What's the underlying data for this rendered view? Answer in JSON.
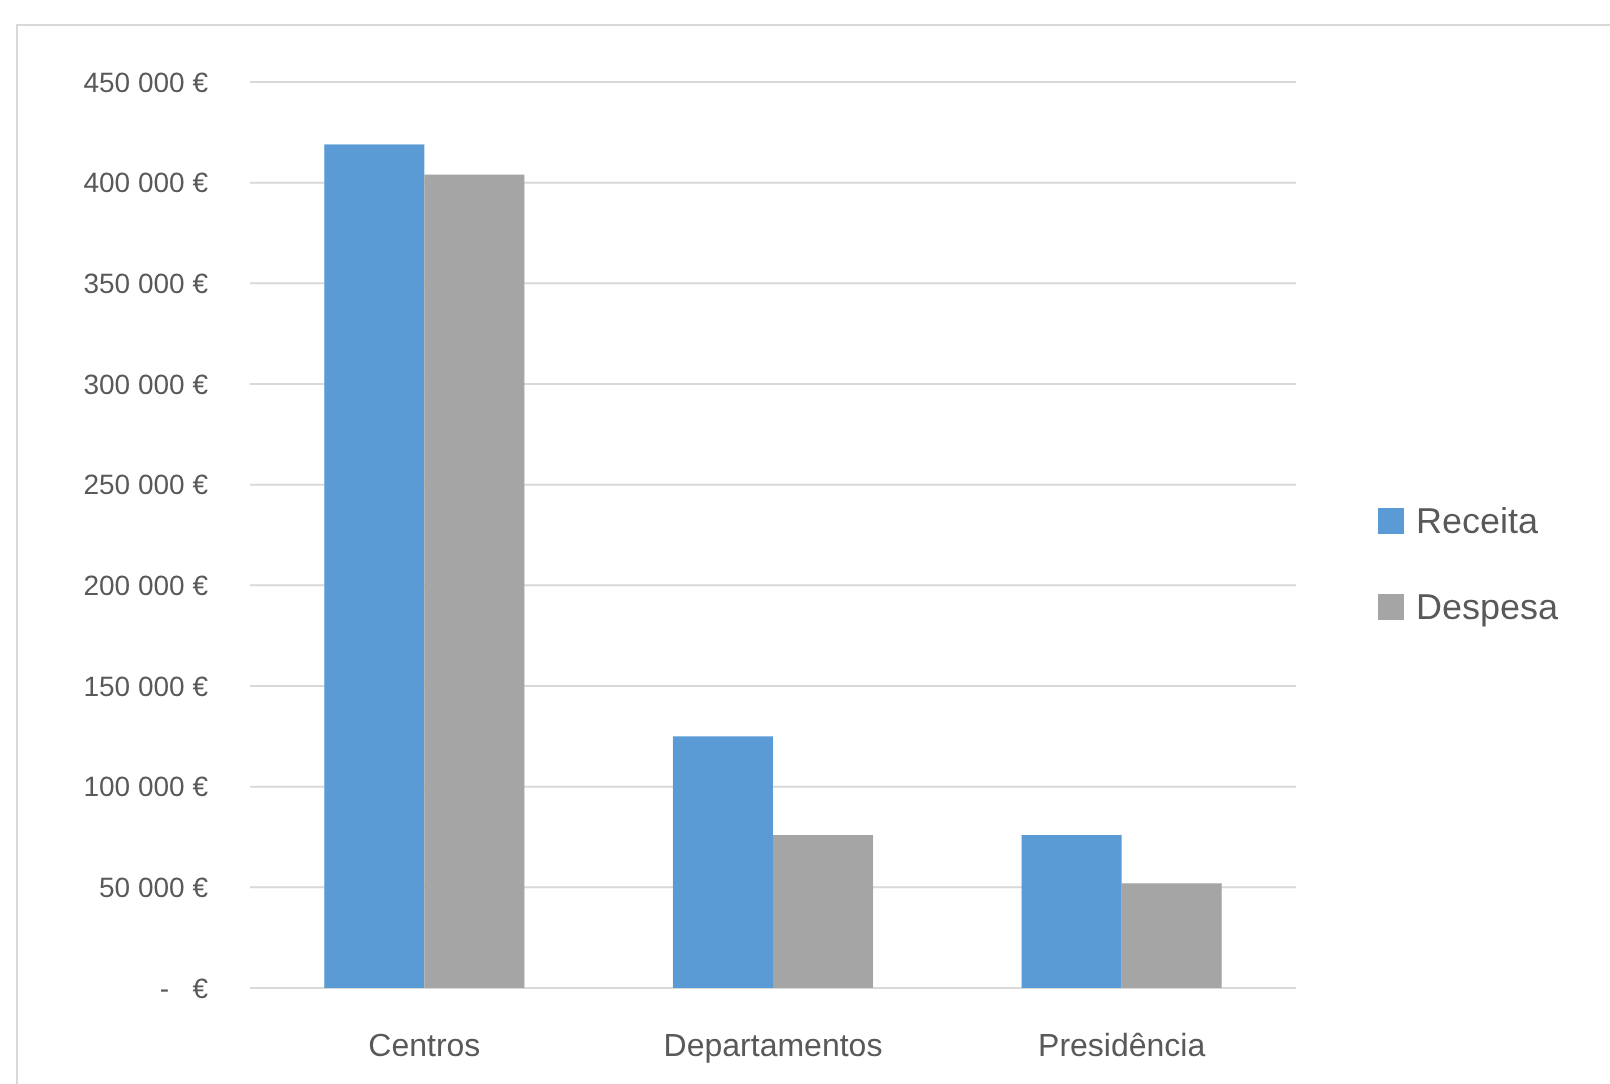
{
  "chart_data": {
    "type": "bar",
    "categories": [
      "Centros",
      "Departamentos",
      "Presidência"
    ],
    "series": [
      {
        "name": "Receita",
        "color": "#5b9bd5",
        "values": [
          419000,
          125000,
          76000
        ]
      },
      {
        "name": "Despesa",
        "color": "#a5a5a5",
        "values": [
          404000,
          76000,
          52000
        ]
      }
    ],
    "ylim": [
      0,
      450000
    ],
    "yticks": [
      {
        "value": 0,
        "label": "-   €"
      },
      {
        "value": 50000,
        "label": "50 000 €"
      },
      {
        "value": 100000,
        "label": "100 000 €"
      },
      {
        "value": 150000,
        "label": "150 000 €"
      },
      {
        "value": 200000,
        "label": "200 000 €"
      },
      {
        "value": 250000,
        "label": "250 000 €"
      },
      {
        "value": 300000,
        "label": "300 000 €"
      },
      {
        "value": 350000,
        "label": "350 000 €"
      },
      {
        "value": 400000,
        "label": "400 000 €"
      },
      {
        "value": 450000,
        "label": "450 000 €"
      }
    ],
    "grid": "y",
    "legend": "right"
  }
}
